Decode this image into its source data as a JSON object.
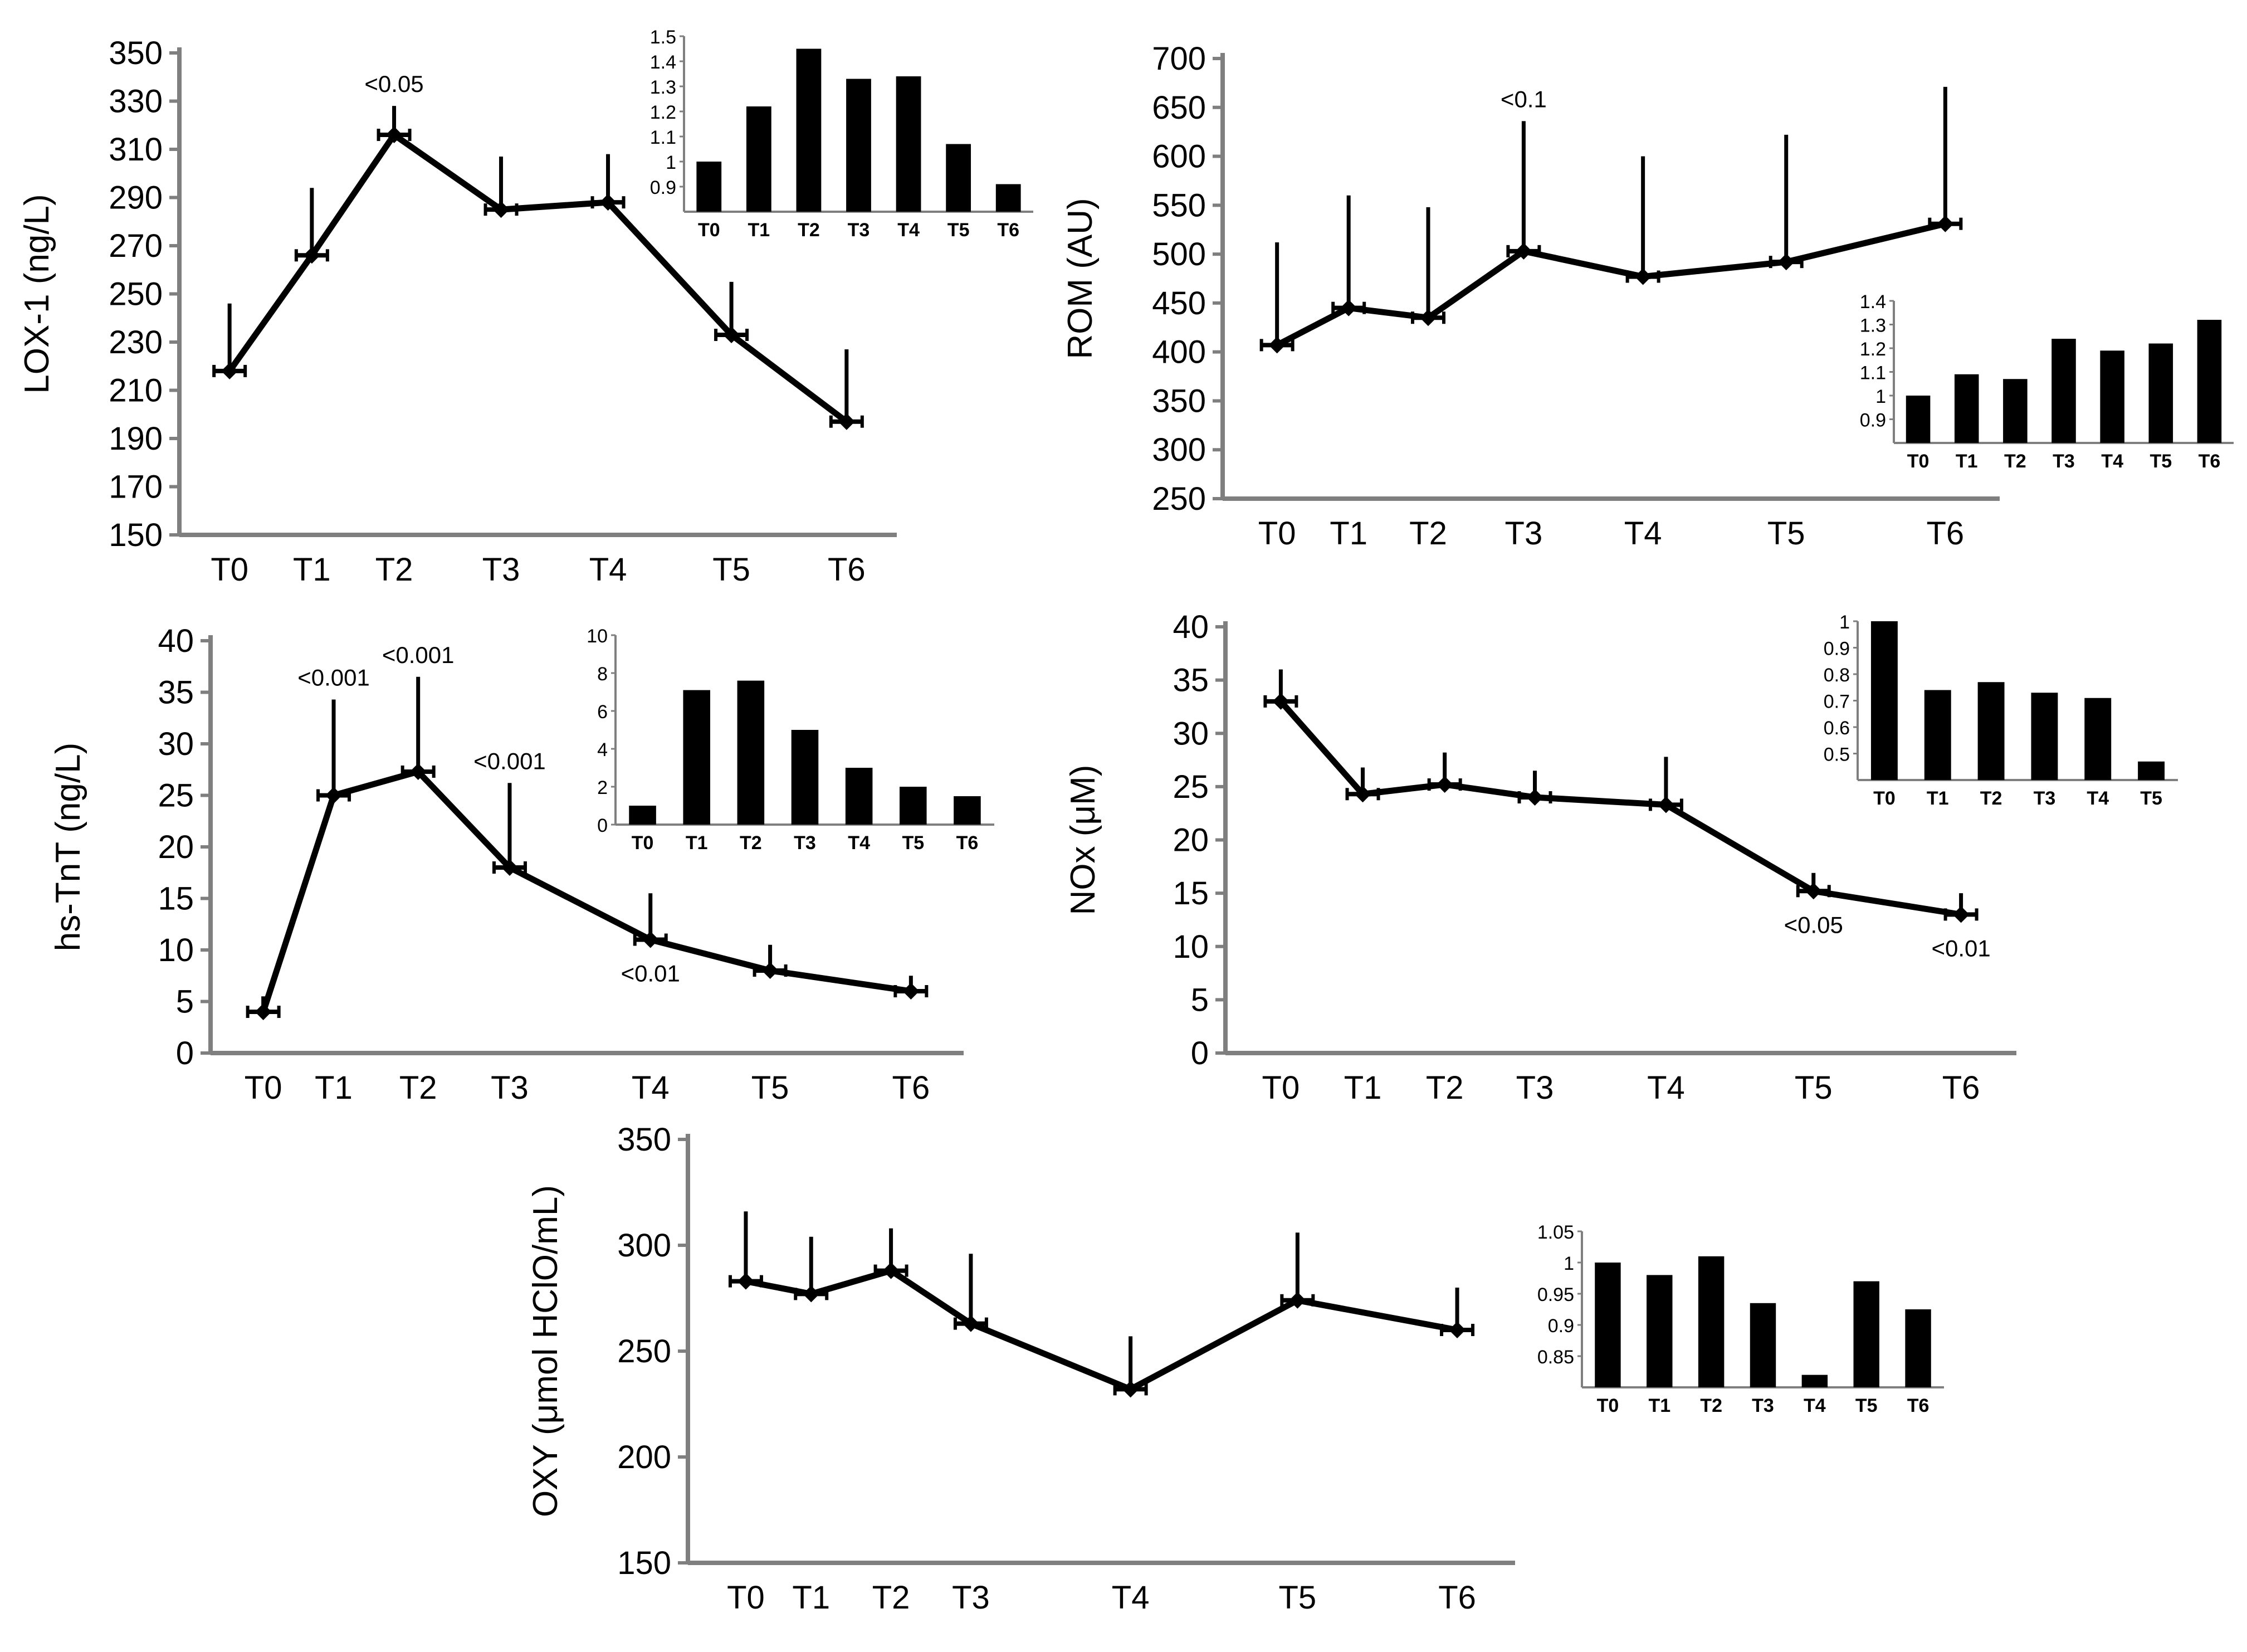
{
  "chart_data": [
    {
      "type": "line",
      "ylabel": "LOX-1 (ng/L)",
      "categories": [
        "T0",
        "T1",
        "T2",
        "T3",
        "T4",
        "T5",
        "T6"
      ],
      "x": [
        0,
        1,
        2,
        3.3,
        4.6,
        6.1,
        7.5
      ],
      "values": [
        218,
        266,
        316,
        285,
        288,
        233,
        197
      ],
      "errors": [
        28,
        28,
        12,
        22,
        20,
        22,
        30
      ],
      "ylim": [
        150,
        350
      ],
      "yticks": [
        150,
        170,
        190,
        210,
        230,
        250,
        270,
        290,
        310,
        330,
        350
      ],
      "annotations": [
        {
          "text": "<0.05",
          "index": 2,
          "position": "above"
        }
      ],
      "inset": {
        "type": "bar",
        "categories": [
          "T0",
          "T1",
          "T2",
          "T3",
          "T4",
          "T5",
          "T6"
        ],
        "values": [
          1.0,
          1.22,
          1.45,
          1.33,
          1.34,
          1.07,
          0.91
        ],
        "ylim": [
          0.8,
          1.5
        ],
        "yticks": [
          "0.9",
          "1",
          "1.1",
          "1.2",
          "1.3",
          "1.4",
          "1.5"
        ]
      }
    },
    {
      "type": "line",
      "ylabel": "ROM (AU)",
      "categories": [
        "T0",
        "T1",
        "T2",
        "T3",
        "T4",
        "T5",
        "T6"
      ],
      "x": [
        0,
        0.9,
        1.9,
        3.1,
        4.6,
        6.4,
        8.4
      ],
      "values": [
        407,
        445,
        435,
        503,
        477,
        492,
        531
      ],
      "errors": [
        105,
        115,
        113,
        133,
        123,
        130,
        140
      ],
      "ylim": [
        250,
        700
      ],
      "yticks": [
        250,
        300,
        350,
        400,
        450,
        500,
        550,
        600,
        650,
        700
      ],
      "annotations": [
        {
          "text": "<0.1",
          "index": 3,
          "position": "above"
        }
      ],
      "inset": {
        "type": "bar",
        "categories": [
          "T0",
          "T1",
          "T2",
          "T3",
          "T4",
          "T5",
          "T6"
        ],
        "values": [
          1.0,
          1.09,
          1.07,
          1.24,
          1.19,
          1.22,
          1.32
        ],
        "ylim": [
          0.8,
          1.4
        ],
        "yticks": [
          "0.9",
          "1",
          "1.1",
          "1.2",
          "1.3",
          "1.4"
        ]
      }
    },
    {
      "type": "line",
      "ylabel": "hs-TnT (ng/L)",
      "categories": [
        "T0",
        "T1",
        "T2",
        "T3",
        "T4",
        "T5",
        "T6"
      ],
      "x": [
        0,
        1,
        2.2,
        3.5,
        5.5,
        7.2,
        9.2
      ],
      "values": [
        4,
        25,
        27.3,
        18,
        11,
        8,
        6
      ],
      "errors": [
        1.5,
        9.3,
        9.2,
        8.2,
        4.5,
        2.5,
        1.5
      ],
      "ylim": [
        0,
        40
      ],
      "yticks": [
        0,
        5,
        10,
        15,
        20,
        25,
        30,
        35,
        40
      ],
      "annotations": [
        {
          "text": "<0.001",
          "index": 1,
          "position": "above"
        },
        {
          "text": "<0.001",
          "index": 2,
          "position": "above"
        },
        {
          "text": "<0.001",
          "index": 3,
          "position": "above"
        },
        {
          "text": "<0.01",
          "index": 4,
          "position": "below"
        }
      ],
      "inset": {
        "type": "bar",
        "categories": [
          "T0",
          "T1",
          "T2",
          "T3",
          "T4",
          "T5",
          "T6"
        ],
        "values": [
          1.0,
          7.1,
          7.6,
          5.0,
          3.0,
          2.0,
          1.5
        ],
        "ylim": [
          0,
          10
        ],
        "yticks": [
          "0",
          "2",
          "4",
          "6",
          "8",
          "10"
        ]
      }
    },
    {
      "type": "line",
      "ylabel": "NOx (μM)",
      "categories": [
        "T0",
        "T1",
        "T2",
        "T3",
        "T4",
        "T5",
        "T6"
      ],
      "x": [
        0,
        1,
        2,
        3.1,
        4.7,
        6.5,
        8.3
      ],
      "values": [
        33,
        24.3,
        25.2,
        24,
        23.3,
        15.2,
        13
      ],
      "errors": [
        3,
        2.5,
        3,
        2.5,
        4.5,
        1.7,
        2
      ],
      "ylim": [
        0,
        40
      ],
      "yticks": [
        0,
        5,
        10,
        15,
        20,
        25,
        30,
        35,
        40
      ],
      "annotations": [
        {
          "text": "<0.05",
          "index": 5,
          "position": "below"
        },
        {
          "text": "<0.01",
          "index": 6,
          "position": "below"
        }
      ],
      "inset": {
        "type": "bar",
        "categories": [
          "T0",
          "T1",
          "T2",
          "T3",
          "T4",
          "T5"
        ],
        "values": [
          1.0,
          0.74,
          0.77,
          0.73,
          0.71,
          0.47
        ],
        "ylim": [
          0.4,
          1.0
        ],
        "yticks": [
          "0.5",
          "0.6",
          "0.7",
          "0.8",
          "0.9",
          "1"
        ]
      }
    },
    {
      "type": "line",
      "ylabel": "OXY (μmol HClO/mL)",
      "categories": [
        "T0",
        "T1",
        "T2",
        "T3",
        "T4",
        "T5",
        "T6"
      ],
      "x": [
        0,
        0.9,
        2,
        3.1,
        5.3,
        7.6,
        9.8
      ],
      "values": [
        283,
        277,
        288,
        263,
        232,
        274,
        260
      ],
      "errors": [
        33,
        27,
        20,
        33,
        25,
        32,
        20
      ],
      "ylim": [
        150,
        350
      ],
      "yticks": [
        150,
        200,
        250,
        300,
        350
      ],
      "annotations": [],
      "inset": {
        "type": "bar",
        "categories": [
          "T0",
          "T1",
          "T2",
          "T3",
          "T4",
          "T5",
          "T6"
        ],
        "values": [
          1.0,
          0.98,
          1.01,
          0.935,
          0.82,
          0.97,
          0.925
        ],
        "ylim": [
          0.8,
          1.05
        ],
        "yticks": [
          "0.85",
          "0.9",
          "0.95",
          "1",
          "1.05"
        ]
      }
    }
  ]
}
